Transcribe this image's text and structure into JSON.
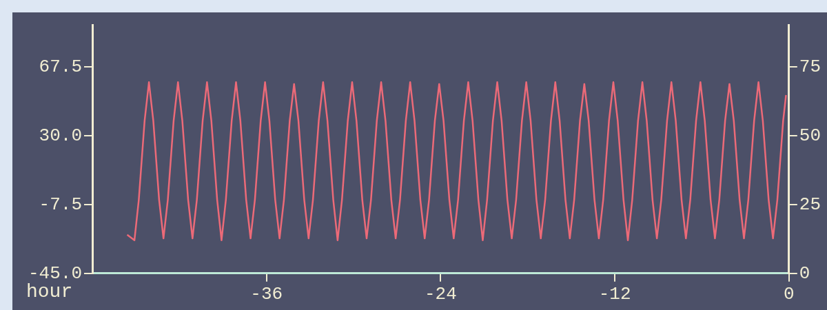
{
  "chart_data": {
    "type": "line",
    "xlabel": "hour",
    "xlim": [
      -48,
      0
    ],
    "xticks": [
      -36,
      -24,
      -12,
      0
    ],
    "ylim": [
      -45,
      90
    ],
    "yticks": [
      {
        "value": -45,
        "label": "-45.0"
      },
      {
        "value": -7.5,
        "label": "-7.5"
      },
      {
        "value": 30,
        "label": "30.0"
      },
      67.5
    ],
    "y2lim": [
      0,
      90
    ],
    "y2ticks": [
      0,
      25,
      50,
      75
    ],
    "grid": false,
    "legend": false,
    "marker": "none",
    "line_style": "solid",
    "series": [
      {
        "color": "#ec6a78",
        "x": [
          -45.6,
          -45.1,
          -44.8,
          -44.4,
          -44.1,
          -43.8,
          -43.4,
          -43.1,
          -42.8,
          -42.4,
          -42.1,
          -41.8,
          -41.4,
          -41.1,
          -40.8,
          -40.4,
          -40.1,
          -39.8,
          -39.4,
          -39.1,
          -38.8,
          -38.4,
          -38.1,
          -37.8,
          -37.4,
          -37.1,
          -36.8,
          -36.4,
          -36.1,
          -35.8,
          -35.4,
          -35.1,
          -34.8,
          -34.4,
          -34.1,
          -33.8,
          -33.4,
          -33.1,
          -32.8,
          -32.4,
          -32.1,
          -31.8,
          -31.4,
          -31.1,
          -30.8,
          -30.4,
          -30.1,
          -29.8,
          -29.4,
          -29.1,
          -28.8,
          -28.4,
          -28.1,
          -27.8,
          -27.4,
          -27.1,
          -26.8,
          -26.4,
          -26.1,
          -25.8,
          -25.4,
          -25.1,
          -24.8,
          -24.4,
          -24.1,
          -23.8,
          -23.4,
          -23.1,
          -22.8,
          -22.4,
          -22.1,
          -21.8,
          -21.4,
          -21.1,
          -20.8,
          -20.4,
          -20.1,
          -19.8,
          -19.4,
          -19.1,
          -18.8,
          -18.4,
          -18.1,
          -17.8,
          -17.4,
          -17.1,
          -16.8,
          -16.4,
          -16.1,
          -15.8,
          -15.4,
          -15.1,
          -14.8,
          -14.4,
          -14.1,
          -13.8,
          -13.4,
          -13.1,
          -12.8,
          -12.4,
          -12.1,
          -11.8,
          -11.4,
          -11.1,
          -10.8,
          -10.4,
          -10.1,
          -9.8,
          -9.4,
          -9.1,
          -8.8,
          -8.4,
          -8.1,
          -7.8,
          -7.4,
          -7.1,
          -6.8,
          -6.4,
          -6.1,
          -5.8,
          -5.4,
          -5.1,
          -4.8,
          -4.4,
          -4.1,
          -3.8,
          -3.4,
          -3.1,
          -2.8,
          -2.4,
          -2.1,
          -1.8,
          -1.4,
          -1.1,
          -0.8,
          -0.4,
          -0.2
        ],
        "values": [
          -24,
          -27,
          -5,
          38,
          59,
          38,
          -5,
          -26,
          -5,
          38,
          59,
          38,
          -5,
          -26,
          -5,
          38,
          59,
          38,
          -5,
          -27,
          -5,
          38,
          59,
          38,
          -5,
          -26,
          -5,
          38,
          59,
          38,
          -5,
          -26,
          -5,
          38,
          58,
          38,
          -5,
          -26,
          -5,
          38,
          59,
          38,
          -5,
          -27,
          -5,
          38,
          59,
          38,
          -5,
          -26,
          -5,
          38,
          59,
          38,
          -5,
          -26,
          -5,
          38,
          59,
          38,
          -5,
          -26,
          -5,
          38,
          58,
          38,
          -5,
          -26,
          -5,
          38,
          59,
          38,
          -5,
          -27,
          -5,
          38,
          59,
          38,
          -5,
          -26,
          -5,
          38,
          59,
          38,
          -5,
          -26,
          -5,
          38,
          59,
          38,
          -5,
          -26,
          -5,
          38,
          58,
          38,
          -5,
          -26,
          -5,
          38,
          59,
          38,
          -5,
          -27,
          -5,
          38,
          59,
          38,
          -5,
          -26,
          -5,
          38,
          59,
          38,
          -5,
          -26,
          -5,
          38,
          59,
          38,
          -5,
          -26,
          -5,
          38,
          58,
          38,
          -5,
          -26,
          -5,
          38,
          59,
          38,
          -5,
          -26,
          -5,
          38,
          52
        ]
      }
    ]
  }
}
